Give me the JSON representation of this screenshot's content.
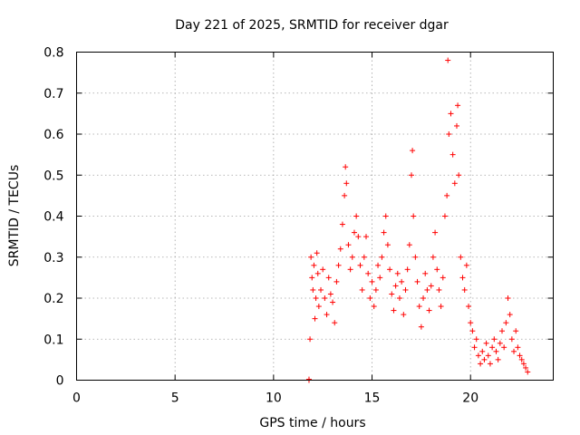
{
  "chart_data": {
    "type": "scatter",
    "title": "Day 221 of 2025, SRMTID for receiver dgar",
    "xlabel": "GPS time / hours",
    "ylabel": "SRMTID / TECUs",
    "xlim": [
      0,
      24.2
    ],
    "ylim": [
      0,
      0.8
    ],
    "xticks": [
      0,
      5,
      10,
      15,
      20
    ],
    "yticks": [
      0,
      0.1,
      0.2,
      0.3,
      0.4,
      0.5,
      0.6,
      0.7,
      0.8
    ],
    "grid": true,
    "marker": "+",
    "colors": {
      "series": "#ff0000",
      "axis": "#000000",
      "grid": "#a0a0a0"
    },
    "series": [
      {
        "name": "SRMTID",
        "points": [
          [
            11.8,
            0.0
          ],
          [
            11.8,
            0.002
          ],
          [
            11.85,
            0.1
          ],
          [
            11.9,
            0.3
          ],
          [
            11.95,
            0.25
          ],
          [
            12.0,
            0.22
          ],
          [
            12.05,
            0.28
          ],
          [
            12.1,
            0.15
          ],
          [
            12.15,
            0.2
          ],
          [
            12.2,
            0.31
          ],
          [
            12.25,
            0.26
          ],
          [
            12.3,
            0.18
          ],
          [
            12.4,
            0.22
          ],
          [
            12.5,
            0.27
          ],
          [
            12.6,
            0.2
          ],
          [
            12.7,
            0.16
          ],
          [
            12.8,
            0.25
          ],
          [
            12.9,
            0.21
          ],
          [
            13.0,
            0.19
          ],
          [
            13.1,
            0.14
          ],
          [
            13.2,
            0.24
          ],
          [
            13.3,
            0.28
          ],
          [
            13.4,
            0.32
          ],
          [
            13.5,
            0.38
          ],
          [
            13.6,
            0.45
          ],
          [
            13.65,
            0.52
          ],
          [
            13.7,
            0.48
          ],
          [
            13.8,
            0.33
          ],
          [
            13.9,
            0.27
          ],
          [
            14.0,
            0.3
          ],
          [
            14.1,
            0.36
          ],
          [
            14.2,
            0.4
          ],
          [
            14.3,
            0.35
          ],
          [
            14.4,
            0.28
          ],
          [
            14.5,
            0.22
          ],
          [
            14.6,
            0.3
          ],
          [
            14.7,
            0.35
          ],
          [
            14.8,
            0.26
          ],
          [
            14.9,
            0.2
          ],
          [
            15.0,
            0.24
          ],
          [
            15.1,
            0.18
          ],
          [
            15.2,
            0.22
          ],
          [
            15.3,
            0.28
          ],
          [
            15.4,
            0.25
          ],
          [
            15.5,
            0.3
          ],
          [
            15.6,
            0.36
          ],
          [
            15.7,
            0.4
          ],
          [
            15.8,
            0.33
          ],
          [
            15.9,
            0.27
          ],
          [
            16.0,
            0.21
          ],
          [
            16.1,
            0.17
          ],
          [
            16.2,
            0.23
          ],
          [
            16.3,
            0.26
          ],
          [
            16.4,
            0.2
          ],
          [
            16.5,
            0.24
          ],
          [
            16.6,
            0.16
          ],
          [
            16.7,
            0.22
          ],
          [
            16.8,
            0.27
          ],
          [
            16.9,
            0.33
          ],
          [
            17.0,
            0.5
          ],
          [
            17.05,
            0.56
          ],
          [
            17.1,
            0.4
          ],
          [
            17.2,
            0.3
          ],
          [
            17.3,
            0.24
          ],
          [
            17.4,
            0.18
          ],
          [
            17.5,
            0.13
          ],
          [
            17.6,
            0.2
          ],
          [
            17.7,
            0.26
          ],
          [
            17.8,
            0.22
          ],
          [
            17.9,
            0.17
          ],
          [
            18.0,
            0.23
          ],
          [
            18.1,
            0.3
          ],
          [
            18.2,
            0.36
          ],
          [
            18.3,
            0.27
          ],
          [
            18.4,
            0.22
          ],
          [
            18.5,
            0.18
          ],
          [
            18.6,
            0.25
          ],
          [
            18.7,
            0.4
          ],
          [
            18.8,
            0.45
          ],
          [
            18.85,
            0.78
          ],
          [
            18.9,
            0.6
          ],
          [
            19.0,
            0.65
          ],
          [
            19.1,
            0.55
          ],
          [
            19.2,
            0.48
          ],
          [
            19.3,
            0.62
          ],
          [
            19.35,
            0.67
          ],
          [
            19.4,
            0.5
          ],
          [
            19.5,
            0.3
          ],
          [
            19.6,
            0.25
          ],
          [
            19.7,
            0.22
          ],
          [
            19.8,
            0.28
          ],
          [
            19.9,
            0.18
          ],
          [
            20.0,
            0.14
          ],
          [
            20.1,
            0.12
          ],
          [
            20.2,
            0.08
          ],
          [
            20.3,
            0.1
          ],
          [
            20.4,
            0.06
          ],
          [
            20.5,
            0.04
          ],
          [
            20.6,
            0.07
          ],
          [
            20.7,
            0.05
          ],
          [
            20.8,
            0.09
          ],
          [
            20.9,
            0.06
          ],
          [
            21.0,
            0.04
          ],
          [
            21.1,
            0.08
          ],
          [
            21.2,
            0.1
          ],
          [
            21.3,
            0.07
          ],
          [
            21.4,
            0.05
          ],
          [
            21.5,
            0.09
          ],
          [
            21.6,
            0.12
          ],
          [
            21.7,
            0.08
          ],
          [
            21.8,
            0.14
          ],
          [
            21.9,
            0.2
          ],
          [
            22.0,
            0.16
          ],
          [
            22.1,
            0.1
          ],
          [
            22.2,
            0.07
          ],
          [
            22.3,
            0.12
          ],
          [
            22.4,
            0.08
          ],
          [
            22.5,
            0.06
          ],
          [
            22.6,
            0.05
          ],
          [
            22.7,
            0.04
          ],
          [
            22.8,
            0.03
          ],
          [
            22.9,
            0.02
          ]
        ]
      }
    ]
  }
}
